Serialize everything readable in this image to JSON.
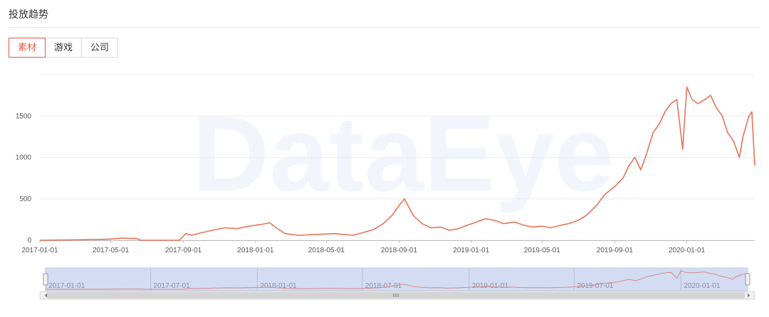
{
  "panel": {
    "title": "投放趋势"
  },
  "tabs": [
    {
      "label": "素材",
      "active": true
    },
    {
      "label": "游戏",
      "active": false
    },
    {
      "label": "公司",
      "active": false
    }
  ],
  "watermark": "DataEye",
  "colors": {
    "accent": "#e8553e",
    "line": "#e8735a",
    "zoom_fill": "#d3dcf2",
    "grid": "#ececec"
  },
  "zoom": {
    "start": "2017-01-01",
    "end": "2020-04-25",
    "scrollbar_icon": "grip-icon"
  },
  "chart_data": {
    "type": "line",
    "title": "",
    "xlabel": "",
    "ylabel": "",
    "ylim": [
      0,
      2000
    ],
    "yticks": [
      0,
      500,
      1000,
      1500
    ],
    "xlim": [
      "2017-01-01",
      "2020-04-25"
    ],
    "xticks": [
      "2017-01-01",
      "2017-05-01",
      "2017-09-01",
      "2018-01-01",
      "2018-05-01",
      "2018-09-01",
      "2019-01-01",
      "2019-05-01",
      "2019-09-01",
      "2020-01-01"
    ],
    "zoom_ticks": [
      "2017-01-01",
      "2017-07-01",
      "2018-01-01",
      "2018-07-01",
      "2019-01-01",
      "2019-07-01",
      "2020-01-01"
    ],
    "grid": true,
    "legend": "none",
    "series": [
      {
        "x": [
          "2017-01-01",
          "2017-03-01",
          "2017-04-15",
          "2017-05-01",
          "2017-05-20",
          "2017-06-15",
          "2017-06-20",
          "2017-08-25",
          "2017-09-05",
          "2017-09-15",
          "2017-10-01",
          "2017-10-20",
          "2017-11-10",
          "2017-12-01",
          "2017-12-20",
          "2018-01-10",
          "2018-01-25",
          "2018-02-05",
          "2018-02-20",
          "2018-03-15",
          "2018-04-15",
          "2018-05-15",
          "2018-06-15",
          "2018-07-01",
          "2018-07-20",
          "2018-08-05",
          "2018-08-20",
          "2018-09-01",
          "2018-09-10",
          "2018-09-25",
          "2018-10-10",
          "2018-10-25",
          "2018-11-10",
          "2018-11-25",
          "2018-12-10",
          "2018-12-25",
          "2019-01-10",
          "2019-01-25",
          "2019-02-10",
          "2019-02-25",
          "2019-03-15",
          "2019-04-01",
          "2019-04-15",
          "2019-05-01",
          "2019-05-15",
          "2019-06-01",
          "2019-06-15",
          "2019-07-01",
          "2019-07-15",
          "2019-08-01",
          "2019-08-15",
          "2019-09-01",
          "2019-09-15",
          "2019-09-25",
          "2019-10-05",
          "2019-10-15",
          "2019-10-25",
          "2019-11-05",
          "2019-11-15",
          "2019-11-25",
          "2019-12-05",
          "2019-12-15",
          "2019-12-25",
          "2020-01-01",
          "2020-01-10",
          "2020-01-20",
          "2020-02-01",
          "2020-02-10",
          "2020-02-20",
          "2020-03-01",
          "2020-03-10",
          "2020-03-20",
          "2020-03-30",
          "2020-04-05",
          "2020-04-15",
          "2020-04-20",
          "2020-04-25"
        ],
        "values": [
          0,
          5,
          10,
          15,
          25,
          20,
          0,
          0,
          80,
          60,
          90,
          120,
          150,
          140,
          170,
          190,
          210,
          150,
          80,
          60,
          70,
          80,
          60,
          90,
          130,
          200,
          300,
          420,
          500,
          300,
          200,
          150,
          160,
          120,
          140,
          180,
          220,
          260,
          240,
          200,
          220,
          180,
          160,
          170,
          150,
          180,
          200,
          240,
          300,
          420,
          550,
          650,
          750,
          900,
          1000,
          850,
          1050,
          1300,
          1400,
          1550,
          1650,
          1700,
          1100,
          1850,
          1700,
          1650,
          1700,
          1750,
          1600,
          1500,
          1300,
          1200,
          1000,
          1250,
          1500,
          1550,
          900
        ]
      }
    ]
  }
}
